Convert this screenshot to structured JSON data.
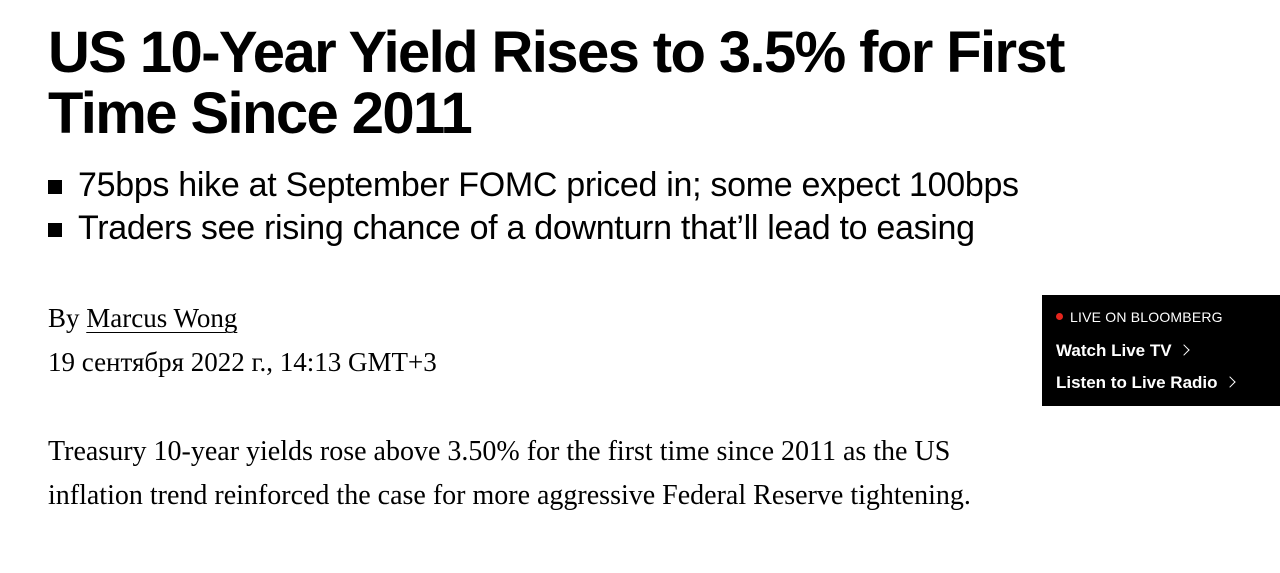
{
  "article": {
    "headline": "US 10-Year Yield Rises to 3.5% for First Time Since 2011",
    "bullets": [
      "75bps hike at September FOMC priced in; some expect 100bps",
      "Traders see rising chance of a downturn that’ll lead to easing"
    ],
    "byline_prefix": "By ",
    "author": "Marcus Wong",
    "date": "19 сентября 2022 г., 14:13 GMT+3",
    "body": "Treasury 10-year yields rose above 3.50% for the first time since 2011 as the US inflation trend reinforced the case for more aggressive Federal Reserve tightening."
  },
  "live_box": {
    "label": "LIVE ON BLOOMBERG",
    "watch_tv": "Watch Live TV",
    "listen_radio": "Listen to Live Radio"
  },
  "icons": {
    "live_dot": "red-dot-icon",
    "chevron": "chevron-right-icon"
  },
  "colors": {
    "live_dot": "#e5251d",
    "live_box_bg": "#000000"
  }
}
